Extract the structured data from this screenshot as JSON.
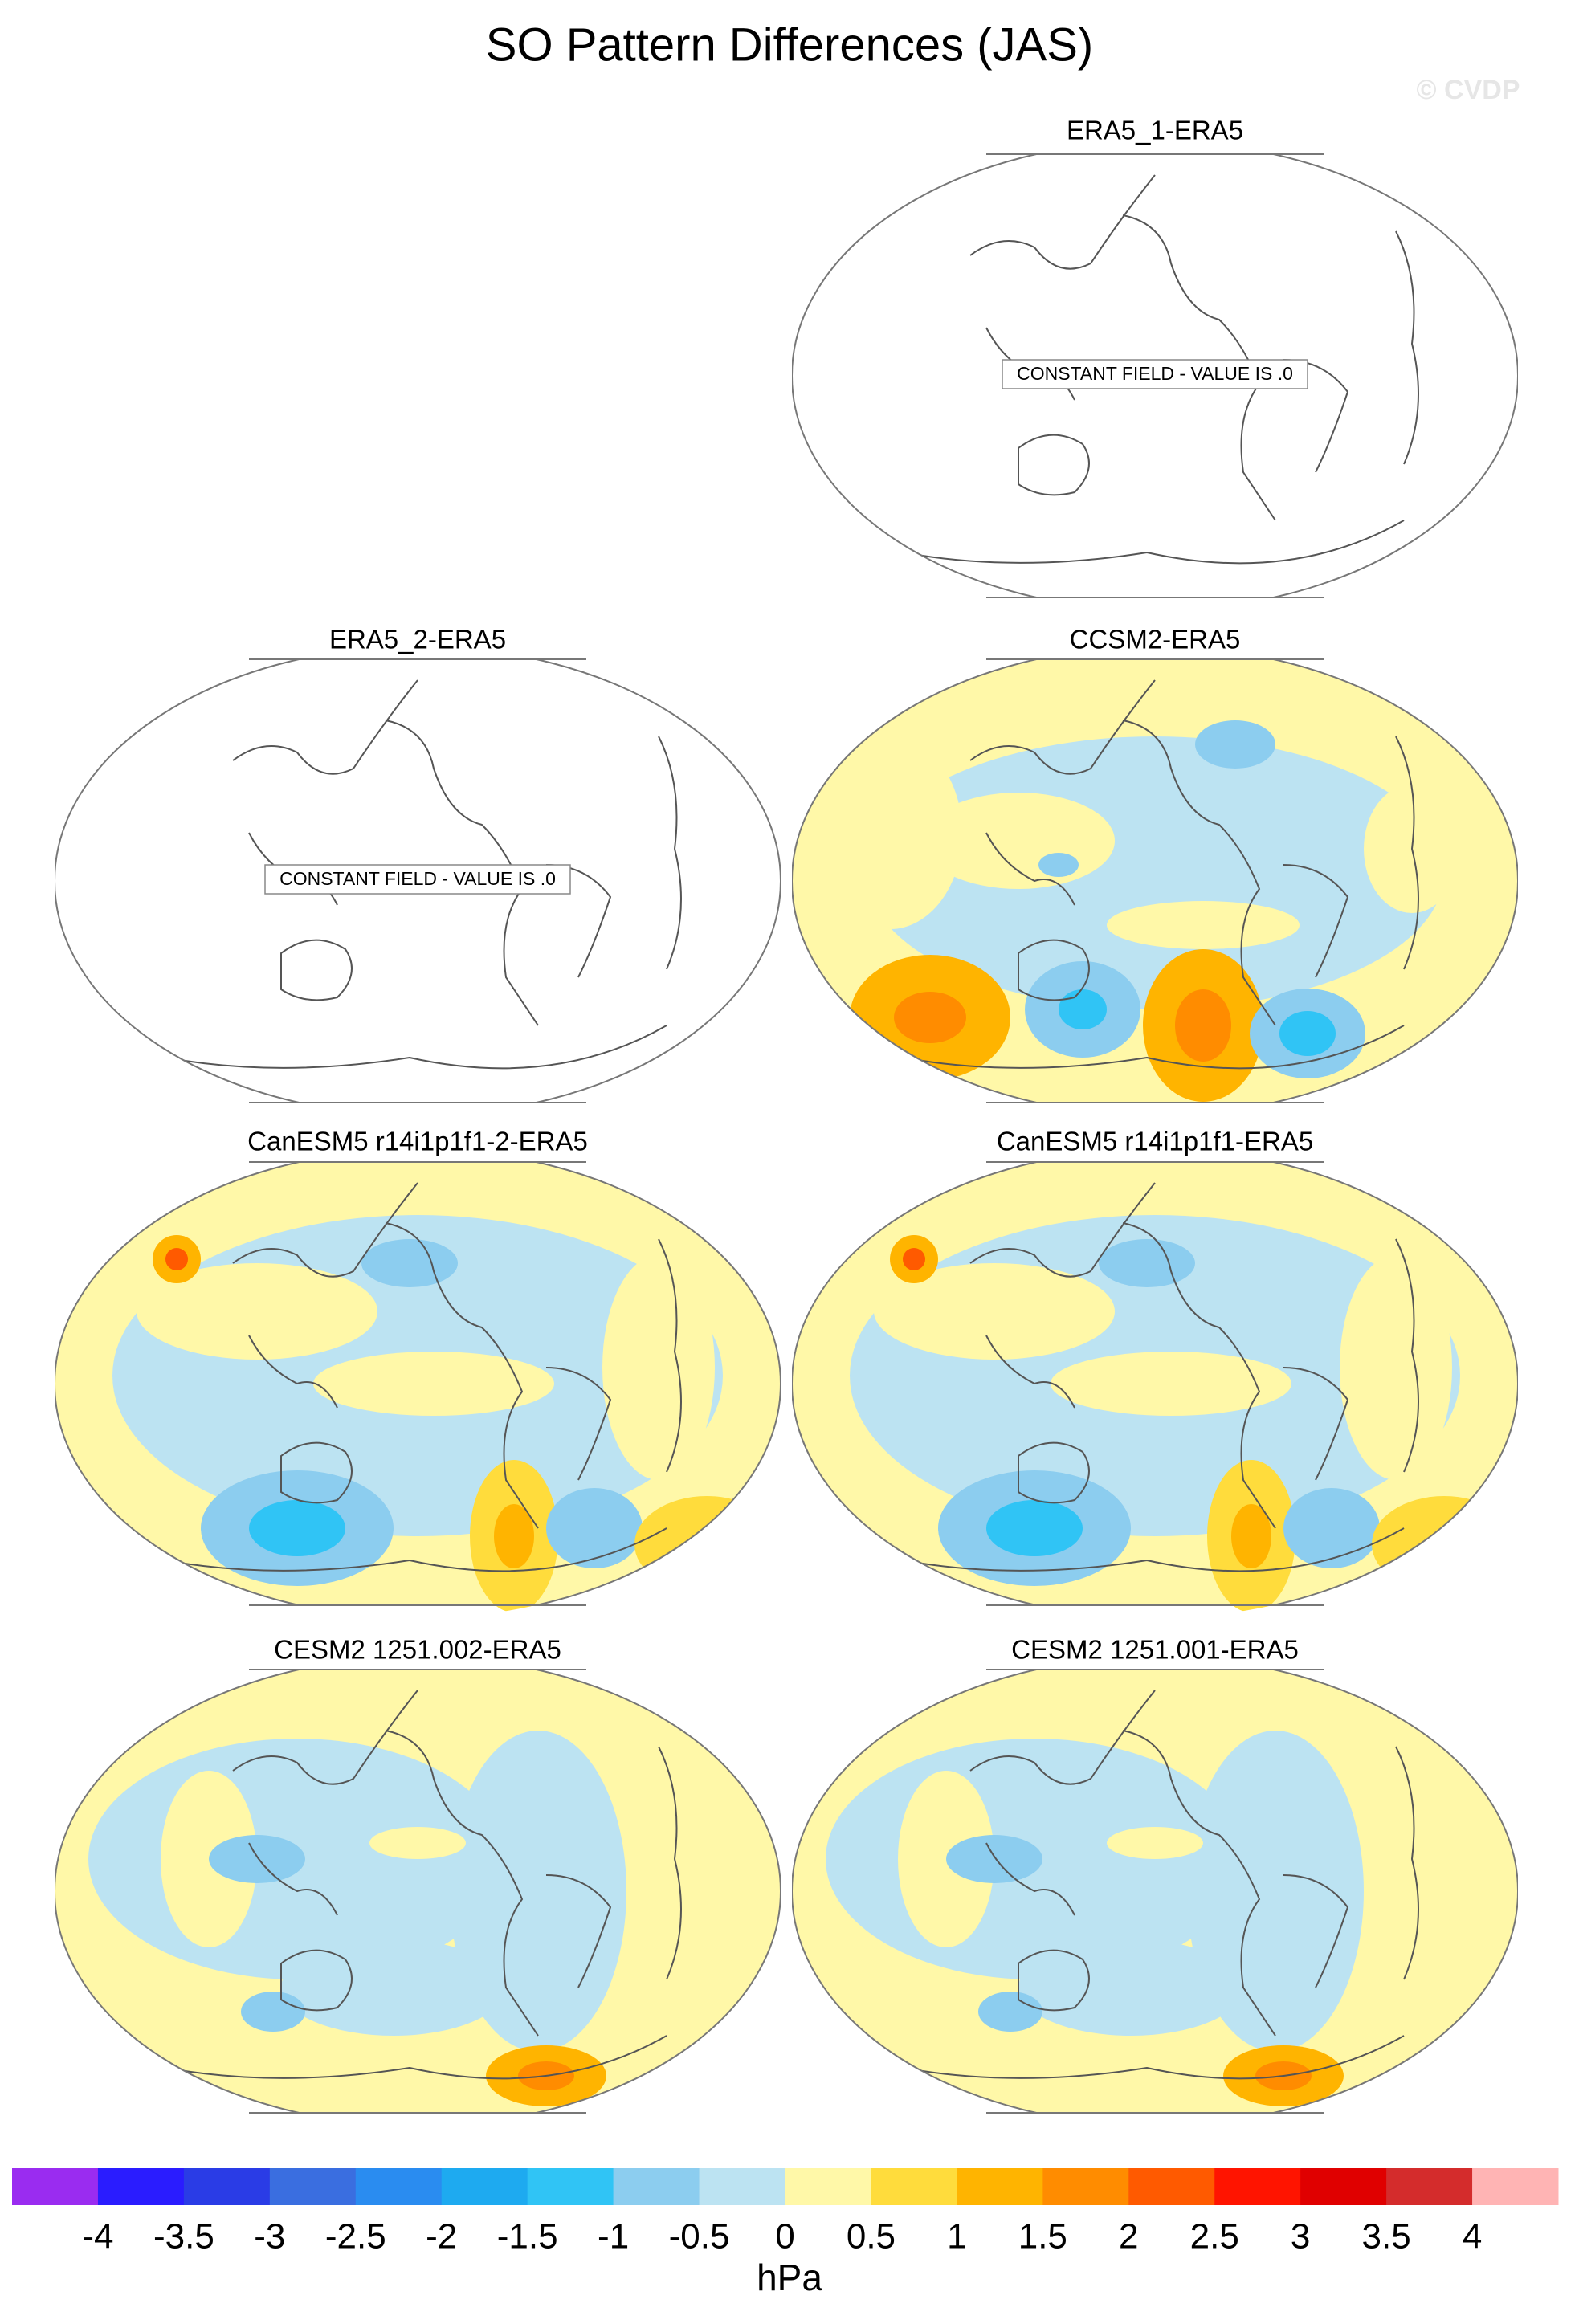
{
  "title": "SO Pattern Differences (JAS)",
  "watermark": "© CVDP",
  "panels": [
    {
      "title": "ERA5_1-ERA5",
      "annotation": "CONSTANT FIELD - VALUE IS .0"
    },
    {
      "title": "ERA5_2-ERA5",
      "annotation": "CONSTANT FIELD - VALUE IS .0"
    },
    {
      "title": "CCSM2-ERA5"
    },
    {
      "title": "CanESM5 r14i1p1f1-2-ERA5"
    },
    {
      "title": "CanESM5 r14i1p1f1-ERA5"
    },
    {
      "title": "CESM2 1251.002-ERA5"
    },
    {
      "title": "CESM2 1251.001-ERA5"
    }
  ],
  "colorbar": {
    "label": "hPa",
    "levels": [
      -4,
      -3.5,
      -3,
      -2.5,
      -2,
      -1.5,
      -1,
      -0.5,
      0,
      0.5,
      1,
      1.5,
      2,
      2.5,
      3,
      3.5,
      4
    ],
    "colors": [
      "#9a2cf0",
      "#2a1cff",
      "#2a3ce6",
      "#3a6ee0",
      "#2a8cf0",
      "#1eaaf0",
      "#30c4f5",
      "#8ccdef",
      "#bce3f2",
      "#fff8a8",
      "#ffdc3c",
      "#ffb400",
      "#ff8c00",
      "#ff5a00",
      "#ff1400",
      "#e00000",
      "#d42c2c",
      "#ffb4b4"
    ]
  }
}
